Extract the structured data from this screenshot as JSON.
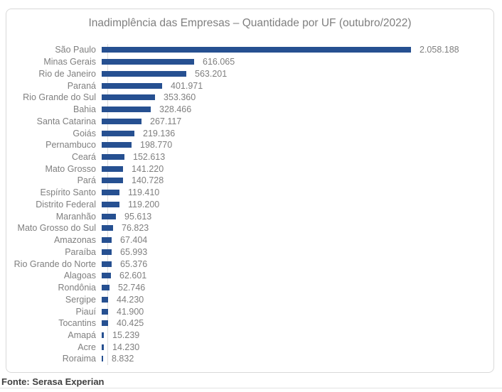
{
  "chart": {
    "title": "Inadimplência das Empresas – Quantidade por UF (outubro/2022)"
  },
  "chart_data": {
    "type": "bar",
    "orientation": "horizontal",
    "title": "Inadimplência das Empresas – Quantidade por UF (outubro/2022)",
    "categories": [
      "São Paulo",
      "Minas Gerais",
      "Rio de Janeiro",
      "Paraná",
      "Rio Grande do Sul",
      "Bahia",
      "Santa Catarina",
      "Goiás",
      "Pernambuco",
      "Ceará",
      "Mato Grosso",
      "Pará",
      "Espírito Santo",
      "Distrito Federal",
      "Maranhão",
      "Mato Grosso do Sul",
      "Amazonas",
      "Paraíba",
      "Rio Grande do Norte",
      "Alagoas",
      "Rondônia",
      "Sergipe",
      "Piauí",
      "Tocantins",
      "Amapá",
      "Acre",
      "Roraima"
    ],
    "values": [
      2058188,
      616065,
      563201,
      401971,
      353360,
      328466,
      267117,
      219136,
      198770,
      152613,
      141220,
      140728,
      119410,
      119200,
      95613,
      76823,
      67404,
      65993,
      65376,
      62601,
      52746,
      44230,
      41900,
      40425,
      15239,
      14230,
      8832
    ],
    "value_labels": [
      "2.058.188",
      "616.065",
      "563.201",
      "401.971",
      "353.360",
      "328.466",
      "267.117",
      "219.136",
      "198.770",
      "152.613",
      "141.220",
      "140.728",
      "119.410",
      "119.200",
      "95.613",
      "76.823",
      "67.404",
      "65.993",
      "65.376",
      "62.601",
      "52.746",
      "44.230",
      "41.900",
      "40.425",
      "15.239",
      "14.230",
      "8.832"
    ],
    "data_labels_position": "outside-end",
    "bar_color": "#265091",
    "text_color": "#7F7F7F",
    "grid": false,
    "legend": false,
    "xlim": [
      0,
      2200000
    ]
  },
  "footer": {
    "source": "Fonte: Serasa Experian"
  }
}
